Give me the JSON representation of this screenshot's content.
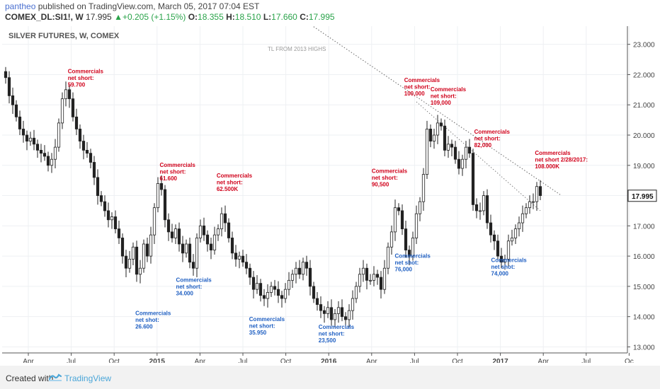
{
  "header": {
    "username": "pantheo",
    "published_text": "published on TradingView.com, March 05, 2017 07:04 EST",
    "symbol": "COMEX_DL:SI1!, W",
    "last": "17.995",
    "change_arrow": "▲",
    "change": "+0.205 (+1.15%)",
    "o_label": "O:",
    "o_value": "18.355",
    "h_label": "H:",
    "h_value": "18.510",
    "l_label": "L:",
    "l_value": "17.660",
    "c_label": "C:",
    "c_value": "17.995"
  },
  "footer": {
    "created_with": "Created with",
    "brand": "TradingView",
    "logo_icon": "tradingview-logo-icon"
  },
  "colors": {
    "grid": "#eef0f3",
    "axis": "#555555",
    "candle": "#222222",
    "candle_fill_down": "#222222",
    "label_red": "#d0021b",
    "label_blue": "#1f5fc2",
    "trendline": "#666666",
    "price_tag_bg": "#ffffff"
  },
  "chart_data": {
    "type": "candlestick",
    "title": "SILVER FUTURES, W, COMEX",
    "trendline_label": "TL FROM 2013 HIGHS",
    "ylim": [
      12.8,
      23.6
    ],
    "y_ticks": [
      "13.000",
      "14.000",
      "15.000",
      "16.000",
      "17.000",
      "18.000",
      "19.000",
      "20.000",
      "21.000",
      "22.000",
      "23.000"
    ],
    "x_ticks": [
      "Apr",
      "Jul",
      "Oct",
      "2015",
      "Apr",
      "Jul",
      "Oct",
      "2016",
      "Apr",
      "Jul",
      "Oct",
      "2017",
      "Apr",
      "Jul",
      "Oc"
    ],
    "bold_x_ticks": [
      "2015",
      "2016",
      "2017"
    ],
    "last_price": "17.995",
    "trendlines": [
      {
        "style": "dotted",
        "points": [
          [
            0.0,
            23.9
          ],
          [
            1.0,
            18.0
          ]
        ]
      },
      {
        "style": "dotted",
        "points": [
          [
            0.0,
            21.1
          ],
          [
            1.0,
            17.5
          ]
        ]
      }
    ],
    "weekly_close": [
      21.9,
      21.3,
      21.0,
      20.6,
      20.2,
      20.0,
      19.8,
      19.9,
      19.7,
      19.5,
      19.4,
      19.3,
      19.0,
      19.2,
      19.6,
      20.4,
      21.2,
      21.5,
      21.2,
      20.6,
      20.2,
      19.8,
      19.5,
      19.4,
      19.1,
      18.6,
      18.0,
      17.8,
      17.5,
      17.2,
      17.3,
      16.9,
      16.6,
      16.0,
      15.6,
      15.9,
      16.3,
      15.4,
      15.6,
      16.4,
      16.0,
      16.7,
      17.6,
      18.4,
      18.2,
      17.2,
      16.8,
      16.6,
      16.9,
      16.4,
      16.1,
      16.4,
      15.8,
      15.6,
      16.6,
      17.0,
      16.7,
      16.4,
      16.2,
      16.7,
      16.9,
      17.4,
      17.1,
      16.6,
      16.1,
      15.9,
      16.0,
      15.8,
      15.6,
      15.3,
      14.9,
      15.1,
      14.7,
      14.6,
      14.8,
      15.0,
      14.9,
      14.7,
      14.6,
      14.9,
      15.2,
      15.4,
      15.6,
      15.4,
      15.8,
      15.6,
      15.0,
      14.6,
      14.4,
      14.2,
      14.1,
      14.3,
      13.9,
      14.1,
      14.3,
      14.0,
      13.9,
      14.2,
      14.6,
      15.0,
      15.4,
      15.6,
      15.2,
      15.2,
      15.4,
      15.3,
      14.9,
      15.6,
      16.3,
      16.8,
      17.6,
      17.5,
      16.9,
      16.2,
      16.0,
      16.6,
      17.4,
      17.8,
      18.7,
      20.2,
      19.8,
      20.0,
      20.4,
      20.3,
      19.5,
      19.7,
      19.6,
      19.2,
      18.9,
      19.2,
      19.6,
      19.4,
      17.7,
      17.5,
      17.5,
      18.0,
      17.1,
      16.7,
      16.5,
      16.0,
      15.8,
      15.9,
      16.5,
      16.6,
      16.9,
      17.1,
      17.4,
      17.6,
      17.8,
      17.8,
      18.3,
      18.0
    ],
    "annotations": [
      {
        "text": [
          "Commercials",
          "net short:",
          "59.700"
        ],
        "color": "red",
        "x": 0.105,
        "y": 22.05
      },
      {
        "text": [
          "Commercials",
          "net short:",
          "61.600"
        ],
        "color": "red",
        "x": 0.252,
        "y": 18.95
      },
      {
        "text": [
          "Commercials",
          "net short:",
          "62.500K"
        ],
        "color": "red",
        "x": 0.343,
        "y": 18.6
      },
      {
        "text": [
          "Commercials",
          "net short:",
          "90,500"
        ],
        "color": "red",
        "x": 0.591,
        "y": 18.75
      },
      {
        "text": [
          "Commercials",
          "net short:",
          "100,000"
        ],
        "color": "red",
        "x": 0.643,
        "y": 21.75
      },
      {
        "text": [
          "Commercials",
          "net short:",
          "109,000"
        ],
        "color": "red",
        "x": 0.685,
        "y": 21.45
      },
      {
        "text": [
          "Commercials",
          "net short:",
          "82,000"
        ],
        "color": "red",
        "x": 0.755,
        "y": 20.05
      },
      {
        "text": [
          "Commercials",
          "net short 2/28/2017:",
          "108.000K"
        ],
        "color": "red",
        "x": 0.852,
        "y": 19.35
      },
      {
        "text": [
          "Commercials",
          "net shot:",
          "26.600"
        ],
        "color": "blue",
        "x": 0.213,
        "y": 14.05
      },
      {
        "text": [
          "Commercials",
          "net short:",
          "34.000"
        ],
        "color": "blue",
        "x": 0.278,
        "y": 15.15
      },
      {
        "text": [
          "Commercials",
          "net short:",
          "35.950"
        ],
        "color": "blue",
        "x": 0.395,
        "y": 13.85
      },
      {
        "text": [
          "Commercials",
          "net short:",
          "23,500"
        ],
        "color": "blue",
        "x": 0.506,
        "y": 13.6
      },
      {
        "text": [
          "Commercials",
          "net shot:",
          "76,000"
        ],
        "color": "blue",
        "x": 0.628,
        "y": 15.95
      },
      {
        "text": [
          "Commercials",
          "net shot:",
          "74,000"
        ],
        "color": "blue",
        "x": 0.782,
        "y": 15.8
      }
    ]
  }
}
